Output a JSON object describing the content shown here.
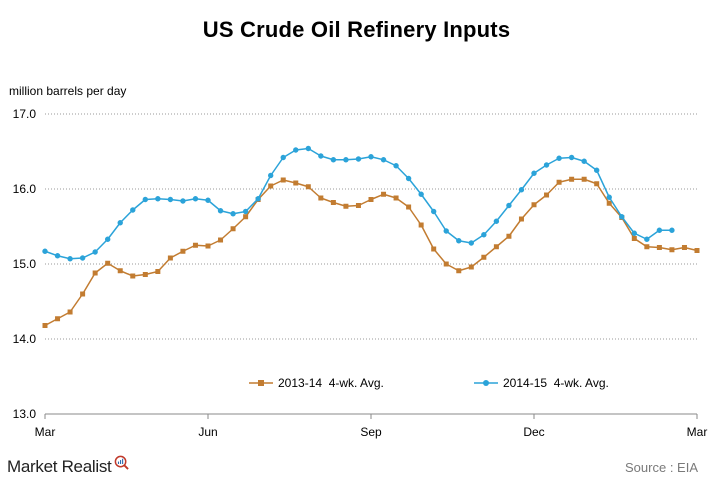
{
  "chart_data": {
    "type": "line",
    "title": "US Crude Oil Refinery Inputs",
    "ylabel": "million barrels per day",
    "xlabel": "",
    "ylim": [
      13.0,
      17.0
    ],
    "yticks": [
      "13.0",
      "14.0",
      "15.0",
      "16.0",
      "17.0"
    ],
    "xtick_labels": [
      "Mar",
      "Jun",
      "Sep",
      "Dec",
      "Mar"
    ],
    "xtick_positions": [
      0,
      13,
      26,
      39,
      52
    ],
    "x_range": [
      0,
      52
    ],
    "grid": "horizontal dotted",
    "legend_position": "bottom",
    "series": [
      {
        "name": "2013-14  4-wk. Avg.",
        "color": "#c27c31",
        "marker": "square",
        "values": [
          14.18,
          14.27,
          14.36,
          14.6,
          14.88,
          15.01,
          14.91,
          14.84,
          14.86,
          14.9,
          15.08,
          15.17,
          15.25,
          15.24,
          15.32,
          15.47,
          15.63,
          15.86,
          16.04,
          16.12,
          16.08,
          16.03,
          15.88,
          15.82,
          15.77,
          15.78,
          15.86,
          15.93,
          15.88,
          15.76,
          15.52,
          15.2,
          15.0,
          14.91,
          14.96,
          15.09,
          15.23,
          15.37,
          15.6,
          15.79,
          15.92,
          16.09,
          16.13,
          16.13,
          16.07,
          15.81,
          15.62,
          15.34,
          15.23,
          15.22,
          15.19,
          15.22,
          15.18
        ]
      },
      {
        "name": "2014-15  4-wk. Avg.",
        "color": "#2ba3d9",
        "marker": "circle",
        "values": [
          15.17,
          15.11,
          15.07,
          15.08,
          15.16,
          15.33,
          15.55,
          15.72,
          15.86,
          15.87,
          15.86,
          15.84,
          15.87,
          15.85,
          15.71,
          15.67,
          15.7,
          15.87,
          16.18,
          16.42,
          16.52,
          16.54,
          16.44,
          16.39,
          16.39,
          16.4,
          16.43,
          16.39,
          16.31,
          16.14,
          15.93,
          15.7,
          15.44,
          15.31,
          15.28,
          15.39,
          15.57,
          15.78,
          15.99,
          16.21,
          16.32,
          16.41,
          16.42,
          16.37,
          16.25,
          15.89,
          15.63,
          15.41,
          15.33,
          15.45,
          15.45
        ]
      }
    ]
  },
  "footer": {
    "brand": "Market Realist",
    "source": "Source : EIA"
  }
}
